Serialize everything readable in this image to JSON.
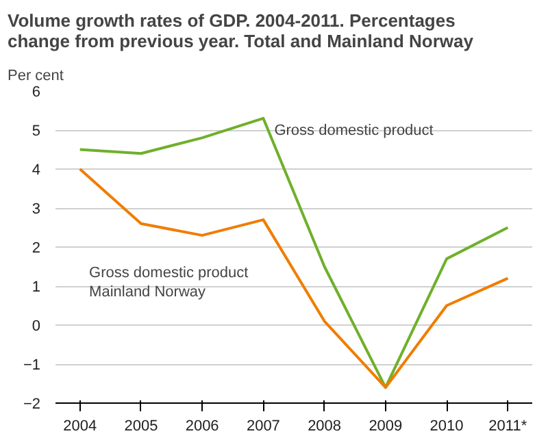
{
  "chart_data": {
    "type": "line",
    "title": "Volume growth rates of GDP. 2004-2011. Percentages change from previous year. Total and Mainland Norway",
    "ylabel": "Per cent",
    "categories": [
      "2004",
      "2005",
      "2006",
      "2007",
      "2008",
      "2009",
      "2010",
      "2011*"
    ],
    "series": [
      {
        "color": "#6fb02b",
        "values": [
          4.5,
          4.4,
          4.8,
          5.3,
          1.5,
          -1.6,
          1.7,
          2.5
        ]
      },
      {
        "color": "#f07d00",
        "values": [
          4.0,
          2.6,
          2.3,
          2.7,
          0.1,
          -1.6,
          0.5,
          1.2
        ]
      }
    ],
    "ylim": [
      -2,
      6
    ],
    "yticks": [
      -2,
      -1,
      0,
      1,
      2,
      3,
      4,
      5,
      6
    ],
    "grid": "y",
    "marker": "none",
    "line_style": "solid",
    "annotations": [
      {
        "text": "Gross domestic product",
        "x": "2007",
        "y": 5.2
      },
      "Gross domestic product\nMainland Norway"
    ]
  }
}
